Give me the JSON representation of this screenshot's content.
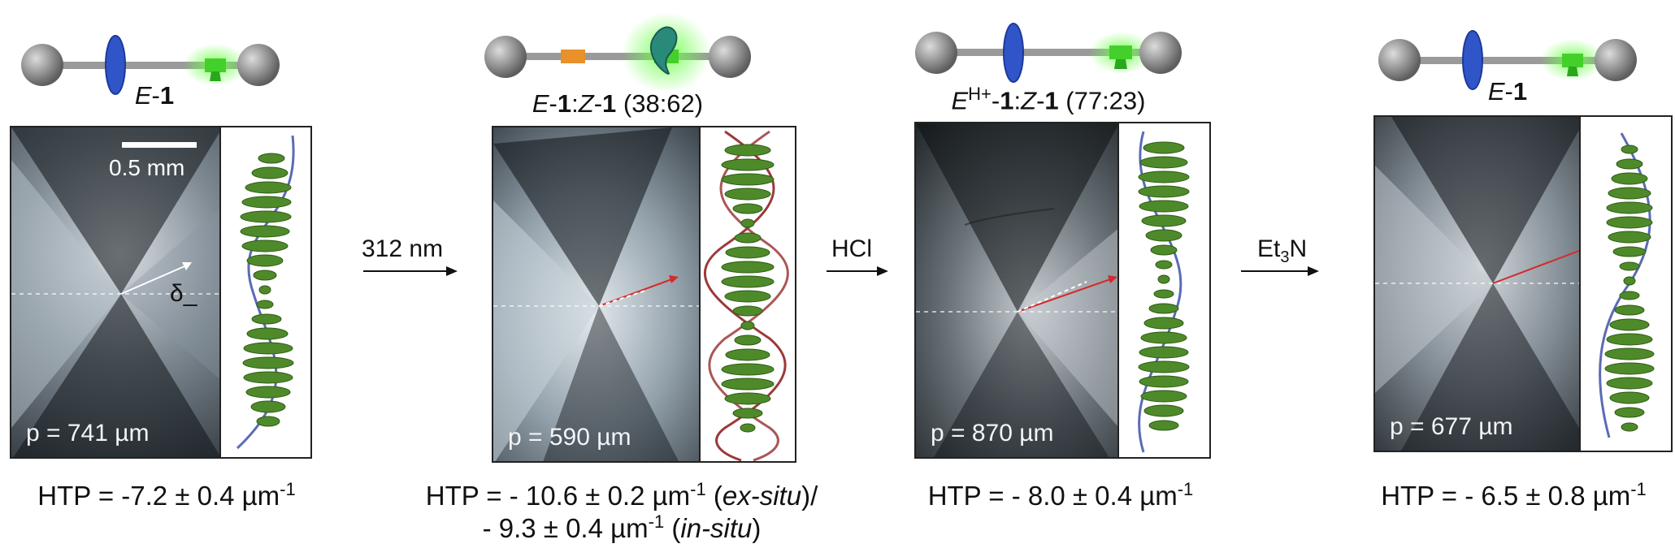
{
  "panels": [
    {
      "molecule_label": [
        "E",
        "-",
        "1"
      ],
      "ratio": "",
      "pitch": "p = 741 µm",
      "htp_lines": [
        "HTP = -7.2 ± 0.4 µm-1"
      ],
      "ring_color": "#2f55c8",
      "mark_color": "#2ecc40",
      "helix_colors": [
        "#5a6bb5"
      ],
      "scale_bar": "0.5 mm",
      "angle_label": "δ_"
    },
    {
      "molecule_label": [
        "E",
        "-",
        "1",
        ":",
        "Z",
        "-",
        "1"
      ],
      "ratio": "(38:62)",
      "pitch": "p = 590 µm",
      "htp_lines": [
        "HTP = - 10.6 ± 0.2 µm-1 (ex-situ)/",
        "- 9.3 ± 0.4 µm-1 (in-situ)"
      ],
      "ring_color": "#2a8a7a",
      "mark_color": "#e8902a",
      "helix_colors": [
        "#9b3a3a"
      ]
    },
    {
      "molecule_label": [
        "E",
        "H+",
        "-",
        "1",
        ":",
        "Z",
        "-",
        "1"
      ],
      "ratio": "(77:23)",
      "pitch": "p = 870 µm",
      "htp_lines": [
        "HTP = - 8.0 ± 0.4 µm-1"
      ],
      "ring_color": "#2f55c8",
      "mark_color": "#2ecc40",
      "helix_colors": [
        "#5a6bb5"
      ]
    },
    {
      "molecule_label": [
        "E",
        "-",
        "1"
      ],
      "ratio": "",
      "pitch": "p = 677 µm",
      "htp_lines": [
        "HTP = - 6.5 ± 0.8 µm-1"
      ],
      "ring_color": "#2f55c8",
      "mark_color": "#2ecc40",
      "helix_colors": [
        "#5a6bb5"
      ]
    }
  ],
  "steps": [
    {
      "label": "312 nm"
    },
    {
      "label": "HCl"
    },
    {
      "label": "Et3N"
    }
  ],
  "colors": {
    "helix_green": "#4f8a2a",
    "arrow_red": "#d42a2a",
    "arrow_white": "#ffffff"
  }
}
